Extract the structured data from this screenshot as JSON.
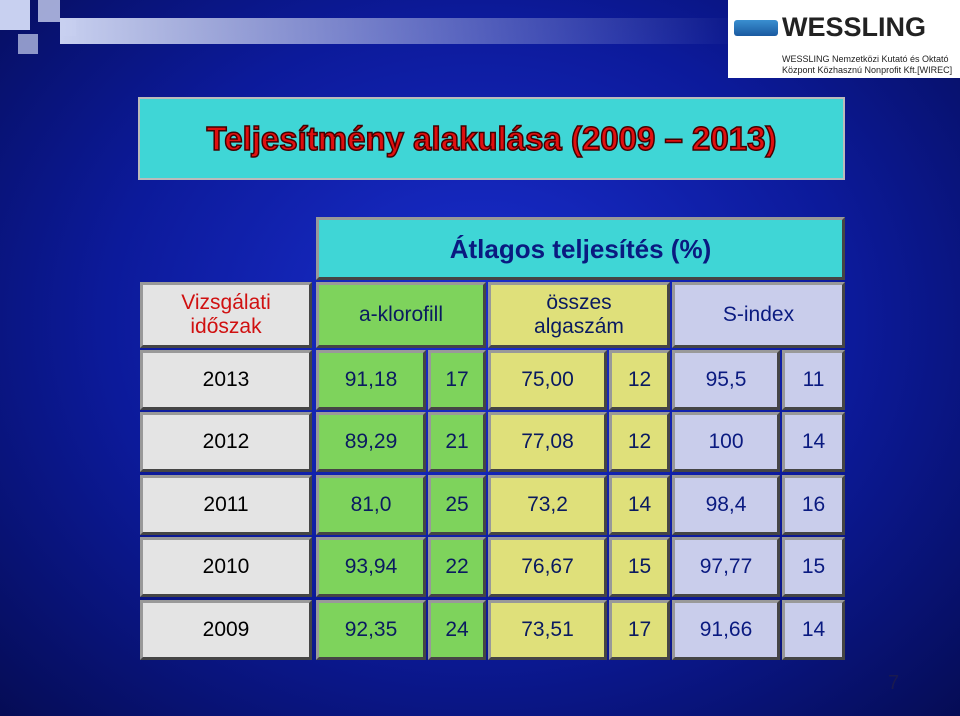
{
  "logo": {
    "name": "WESSLING",
    "line1": "WESSLING Nemzetközi Kutató és Oktató",
    "line2": "Központ Közhasznú Nonprofit Kft.[WIREC]"
  },
  "title": "Teljesítmény alakulása (2009 – 2013)",
  "table": {
    "group_header": "Átlagos teljesítés (%)",
    "headers": [
      [
        "Vizsgálati",
        "időszak"
      ],
      [
        "a-klorofill"
      ],
      [
        "összes",
        "algaszám"
      ],
      [
        "S-index"
      ]
    ],
    "rows": [
      [
        "2013",
        "91,18",
        "17",
        "75,00",
        "12",
        "95,5",
        "11"
      ],
      [
        "2012",
        "89,29",
        "21",
        "77,08",
        "12",
        "100",
        "14"
      ],
      [
        "2011",
        "81,0",
        "25",
        "73,2",
        "14",
        "98,4",
        "16"
      ],
      [
        "2010",
        "93,94",
        "22",
        "76,67",
        "15",
        "97,77",
        "15"
      ],
      [
        "2009",
        "92,35",
        "24",
        "73,51",
        "17",
        "91,66",
        "14"
      ]
    ]
  },
  "page_number": "7"
}
